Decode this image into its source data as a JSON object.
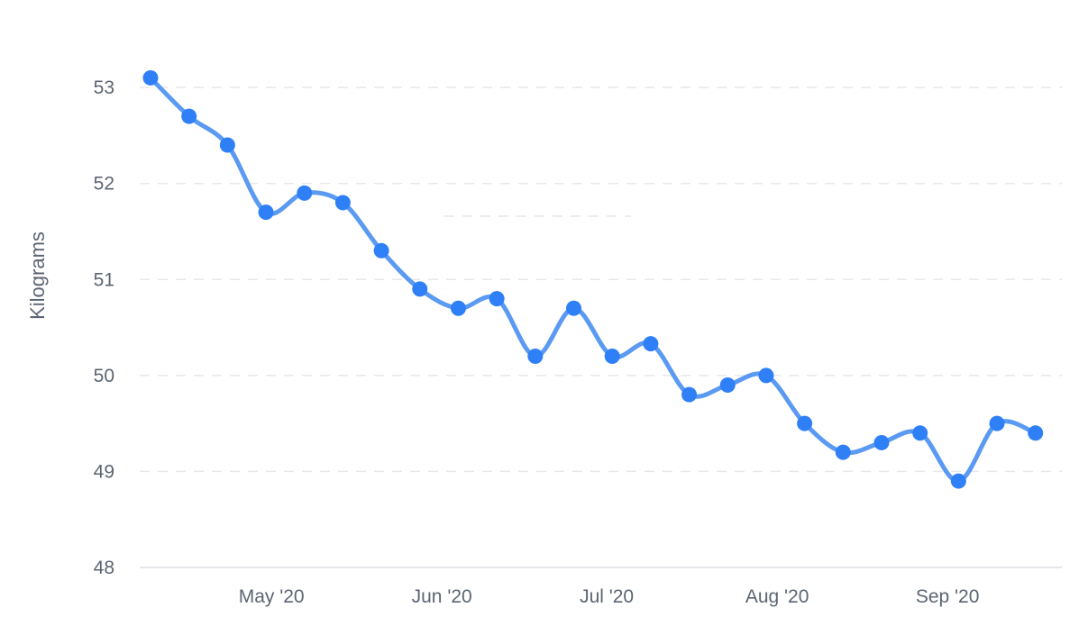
{
  "chart_data": {
    "type": "line",
    "title": "",
    "xlabel": "",
    "ylabel": "Kilograms",
    "ylim": [
      48,
      53.2
    ],
    "y_ticks": [
      48,
      49,
      50,
      51,
      52,
      53
    ],
    "x_range": [
      "2020-04-09",
      "2020-09-20"
    ],
    "x_ticks": [
      {
        "date": "2020-05-01",
        "label": "May '20"
      },
      {
        "date": "2020-06-01",
        "label": "Jun '20"
      },
      {
        "date": "2020-07-01",
        "label": "Jul '20"
      },
      {
        "date": "2020-08-01",
        "label": "Aug '20"
      },
      {
        "date": "2020-09-01",
        "label": "Sep '20"
      }
    ],
    "grid": true,
    "color": "#2f80f7",
    "line_color": "#5b9af2",
    "series": [
      {
        "points": [
          {
            "x": "2020-04-09",
            "y": 53.1
          },
          {
            "x": "2020-04-16",
            "y": 52.7
          },
          {
            "x": "2020-04-23",
            "y": 52.4
          },
          {
            "x": "2020-04-30",
            "y": 51.7
          },
          {
            "x": "2020-05-07",
            "y": 51.9
          },
          {
            "x": "2020-05-14",
            "y": 51.8
          },
          {
            "x": "2020-05-21",
            "y": 51.3
          },
          {
            "x": "2020-05-28",
            "y": 50.9
          },
          {
            "x": "2020-06-04",
            "y": 50.7
          },
          {
            "x": "2020-06-11",
            "y": 50.8
          },
          {
            "x": "2020-06-18",
            "y": 50.2
          },
          {
            "x": "2020-06-25",
            "y": 50.7
          },
          {
            "x": "2020-07-02",
            "y": 50.2
          },
          {
            "x": "2020-07-09",
            "y": 50.33
          },
          {
            "x": "2020-07-16",
            "y": 49.8
          },
          {
            "x": "2020-07-23",
            "y": 49.9
          },
          {
            "x": "2020-07-30",
            "y": 50.0
          },
          {
            "x": "2020-08-06",
            "y": 49.5
          },
          {
            "x": "2020-08-13",
            "y": 49.2
          },
          {
            "x": "2020-08-20",
            "y": 49.3
          },
          {
            "x": "2020-08-27",
            "y": 49.4
          },
          {
            "x": "2020-09-03",
            "y": 48.9
          },
          {
            "x": "2020-09-10",
            "y": 49.5
          },
          {
            "x": "2020-09-17",
            "y": 49.4
          }
        ]
      }
    ]
  }
}
